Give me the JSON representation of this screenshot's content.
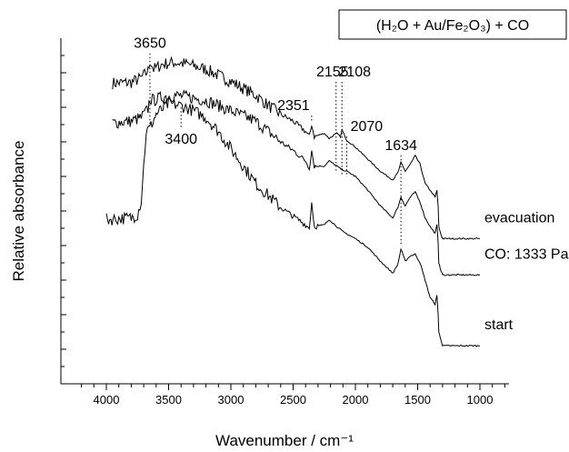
{
  "chart_data": {
    "type": "line",
    "title": "",
    "legend_box": {
      "text": "(H₂O + Au/Fe₂O₃) + CO",
      "placement": "top-right"
    },
    "xlabel": "Wavenumber / cm⁻¹",
    "ylabel": "Relative absorbance",
    "x_reversed": true,
    "xlim": [
      4200,
      800
    ],
    "ylim": [
      0,
      10
    ],
    "y_tick_labels_shown": false,
    "x_ticks": [
      4000,
      3500,
      3000,
      2500,
      2000,
      1500,
      1000
    ],
    "x_tick_labels": [
      "4000",
      "3500",
      "3000",
      "2500",
      "2000",
      "1500",
      "1000"
    ],
    "grid": false,
    "series": [
      {
        "name": "evacuation",
        "x": [
          3950,
          3800,
          3720,
          3665,
          3650,
          3620,
          3550,
          3450,
          3350,
          3200,
          3000,
          2800,
          2700,
          2600,
          2500,
          2400,
          2370,
          2351,
          2330,
          2250,
          2210,
          2150,
          2120,
          2108,
          2070,
          2000,
          1900,
          1800,
          1700,
          1660,
          1634,
          1600,
          1560,
          1520,
          1480,
          1440,
          1400,
          1360,
          1345,
          1335,
          1330,
          1320,
          1310,
          1300,
          1200,
          1100,
          1000
        ],
        "y": [
          8.7,
          8.72,
          8.85,
          9.05,
          9.35,
          9.1,
          9.25,
          9.3,
          9.25,
          9.1,
          8.75,
          8.35,
          8.05,
          7.8,
          7.6,
          7.3,
          7.15,
          7.5,
          7.15,
          7.25,
          7.1,
          7.25,
          7.15,
          7.35,
          7.05,
          6.85,
          6.5,
          6.15,
          5.9,
          6.1,
          6.4,
          6.15,
          6.35,
          6.6,
          6.35,
          5.8,
          5.6,
          5.4,
          5.6,
          5.1,
          4.55,
          4.4,
          4.3,
          4.2,
          4.2,
          4.2,
          4.2
        ]
      },
      {
        "name": "CO: 1333 Pa",
        "x": [
          3950,
          3800,
          3720,
          3665,
          3650,
          3620,
          3550,
          3450,
          3350,
          3200,
          3000,
          2800,
          2700,
          2600,
          2500,
          2400,
          2370,
          2351,
          2330,
          2250,
          2210,
          2150,
          2108,
          2070,
          2000,
          1900,
          1800,
          1700,
          1660,
          1634,
          1600,
          1560,
          1520,
          1480,
          1440,
          1400,
          1360,
          1345,
          1335,
          1330,
          1320,
          1310,
          1300,
          1200,
          1100,
          1000
        ],
        "y": [
          7.55,
          7.6,
          7.7,
          7.95,
          8.25,
          8.2,
          8.3,
          8.35,
          8.3,
          8.2,
          7.9,
          7.6,
          7.3,
          7.0,
          6.75,
          6.45,
          6.25,
          6.75,
          6.3,
          6.3,
          6.45,
          6.3,
          6.2,
          6.15,
          6.0,
          5.6,
          5.15,
          4.8,
          5.1,
          5.4,
          5.15,
          5.4,
          5.55,
          5.25,
          4.8,
          4.55,
          4.35,
          4.6,
          4.05,
          3.5,
          3.35,
          3.25,
          3.15,
          3.15,
          3.15,
          3.15
        ]
      },
      {
        "name": "start",
        "x": [
          4000,
          3900,
          3800,
          3750,
          3720,
          3700,
          3680,
          3650,
          3600,
          3500,
          3400,
          3300,
          3200,
          3100,
          3000,
          2900,
          2800,
          2700,
          2600,
          2500,
          2400,
          2370,
          2351,
          2330,
          2250,
          2210,
          2150,
          2100,
          2000,
          1900,
          1800,
          1700,
          1660,
          1634,
          1600,
          1560,
          1520,
          1480,
          1440,
          1400,
          1360,
          1345,
          1335,
          1330,
          1320,
          1310,
          1300,
          1200,
          1100,
          1000
        ],
        "y": [
          4.75,
          4.78,
          4.8,
          4.9,
          5.3,
          6.3,
          7.3,
          7.4,
          7.8,
          8.1,
          8.05,
          7.9,
          7.7,
          7.3,
          6.8,
          6.3,
          5.8,
          5.45,
          5.1,
          4.85,
          4.6,
          4.5,
          5.25,
          4.55,
          4.6,
          4.75,
          4.55,
          4.4,
          4.2,
          3.95,
          3.55,
          3.2,
          3.45,
          3.9,
          3.55,
          3.7,
          3.75,
          3.5,
          3.0,
          2.5,
          2.3,
          2.55,
          2.0,
          1.5,
          1.35,
          1.25,
          1.1,
          1.1,
          1.1,
          1.1
        ]
      }
    ],
    "curve_labels": [
      {
        "series": "evacuation",
        "text": "evacuation"
      },
      {
        "series": "CO: 1333 Pa",
        "text": "CO: 1333 Pa"
      },
      {
        "series": "start",
        "text": "start"
      }
    ],
    "annotations": [
      {
        "x": 3650,
        "text": "3650"
      },
      {
        "x": 3400,
        "text": "3400"
      },
      {
        "x": 2351,
        "text": "2351"
      },
      {
        "x": 2155,
        "text": "2155"
      },
      {
        "x": 2108,
        "text": "2108"
      },
      {
        "x": 2070,
        "text": "2070"
      },
      {
        "x": 1634,
        "text": "1634"
      }
    ]
  }
}
